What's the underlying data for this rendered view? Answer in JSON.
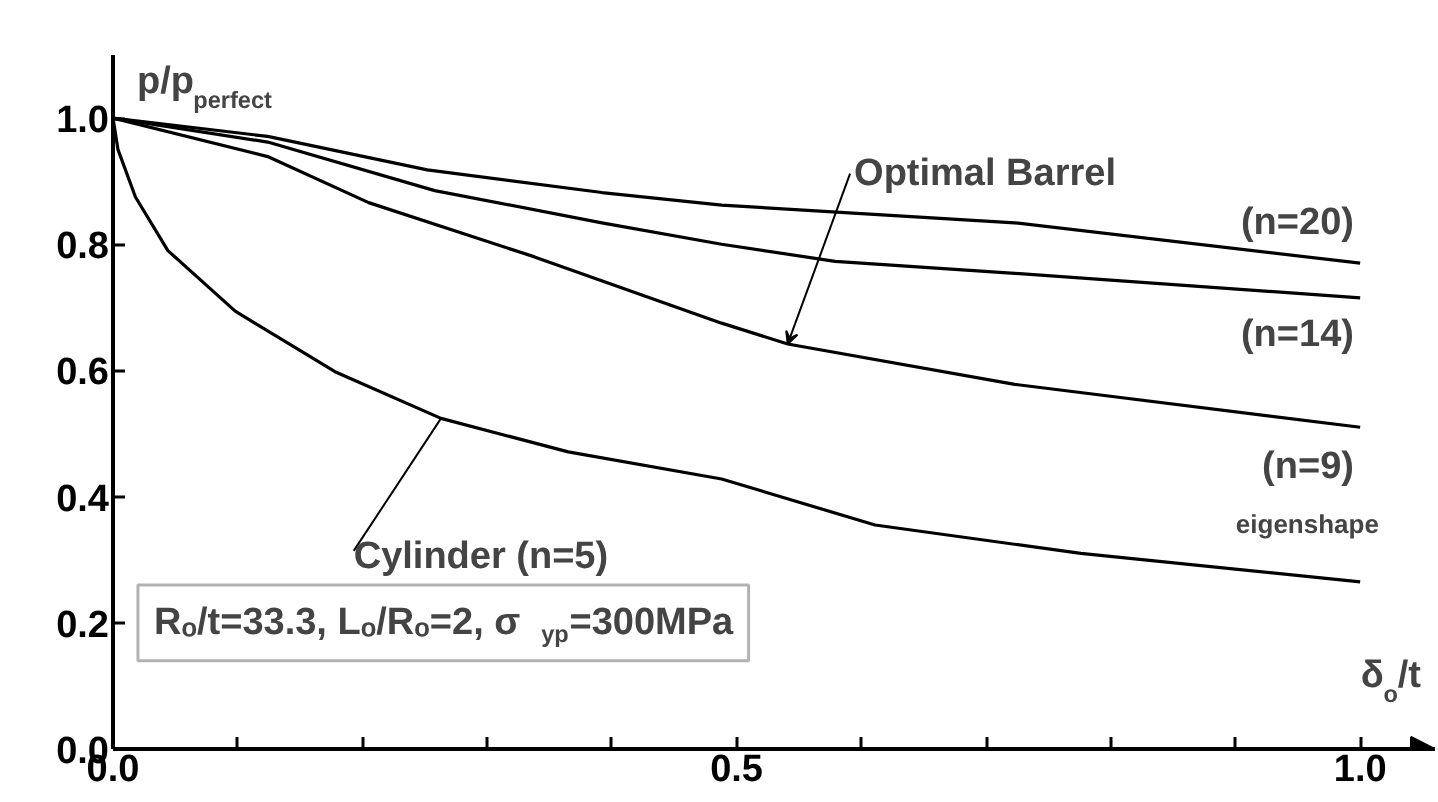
{
  "chart_data": {
    "type": "line",
    "ylabel": "p/p$_{perfect}$",
    "xlabel": "δ$_{o}$/t",
    "xlim": [
      0,
      1.06
    ],
    "ylim": [
      0,
      1.1
    ],
    "xticks": [
      {
        "value": 0.0,
        "label": "0.0"
      },
      {
        "value": 0.1,
        "label": null
      },
      {
        "value": 0.2,
        "label": null
      },
      {
        "value": 0.3,
        "label": null
      },
      {
        "value": 0.4,
        "label": null
      },
      0.5,
      {
        "value": 0.6,
        "label": null
      },
      {
        "value": 0.7,
        "label": null
      },
      {
        "value": 0.8,
        "label": null
      },
      {
        "value": 0.9,
        "label": null
      },
      {
        "value": 1.0,
        "label": "1.0"
      }
    ],
    "yticks": [
      {
        "value": 0.0,
        "label": "0.0"
      },
      0.2,
      0.4,
      0.6,
      0.8,
      {
        "value": 1.0,
        "label": "1.0"
      }
    ],
    "grid": false,
    "marker": "none",
    "line_style": "solid",
    "series": [
      {
        "name": "(n=20)",
        "color": "#000000",
        "x": [
          0,
          0.124,
          0.252,
          0.392,
          0.488,
          0.723,
          1.0
        ],
        "values": [
          1.0,
          0.971,
          0.918,
          0.882,
          0.862,
          0.834,
          0.77
        ]
      },
      {
        "name": "(n=14)",
        "color": "#000000",
        "x": [
          0,
          0.124,
          0.258,
          0.392,
          0.488,
          0.579,
          0.723,
          1.0
        ],
        "values": [
          1.0,
          0.962,
          0.885,
          0.834,
          0.8,
          0.773,
          0.754,
          0.715
        ]
      },
      {
        "name": "(n=9)",
        "color": "#000000",
        "x": [
          0,
          0.124,
          0.205,
          0.338,
          0.488,
          0.541,
          0.723,
          1.0
        ],
        "values": [
          1.0,
          0.939,
          0.866,
          0.78,
          0.675,
          0.642,
          0.578,
          0.51
        ]
      },
      {
        "name": "Cylinder (n=5)",
        "color": "#000000",
        "x": [
          0,
          0.004,
          0.018,
          0.044,
          0.098,
          0.178,
          0.263,
          0.365,
          0.488,
          0.611,
          0.776,
          1.0
        ],
        "values": [
          1.0,
          0.95,
          0.875,
          0.79,
          0.694,
          0.598,
          0.524,
          0.471,
          0.428,
          0.355,
          0.31,
          0.265
        ]
      }
    ],
    "annotations": [
      {
        "text": "Optimal Barrel",
        "x": 0.541,
        "y": 0.642
      },
      "eigenshape",
      "Rₒ/t=33.3, Lₒ/Rₒ=2, σ$_{yp}$=300MPa"
    ]
  }
}
